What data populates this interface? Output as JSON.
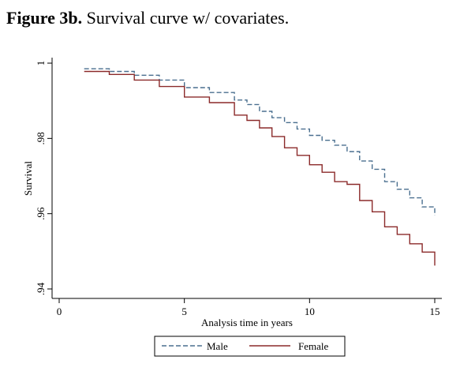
{
  "figure": {
    "label": "Figure 3b.",
    "caption": "Survival curve w/ covariates."
  },
  "chart_data": {
    "type": "line",
    "title": "",
    "xlabel": "Analysis time in years",
    "ylabel": "Survival",
    "xlim": [
      0,
      15
    ],
    "ylim": [
      0.94,
      1.0
    ],
    "xticks": [
      0,
      5,
      10,
      15
    ],
    "xtick_labels": [
      "0",
      "5",
      "10",
      "15"
    ],
    "yticks": [
      0.94,
      0.96,
      0.98,
      1.0
    ],
    "ytick_labels": [
      ".94",
      ".96",
      ".98",
      "1"
    ],
    "grid": false,
    "legend_position": "bottom",
    "series": [
      {
        "name": "Male",
        "color": "#4a6f8f",
        "style": "dashed",
        "x": [
          1.0,
          2.0,
          3.0,
          4.0,
          5.0,
          6.0,
          7.0,
          7.5,
          8.0,
          8.5,
          9.0,
          9.5,
          10.0,
          10.5,
          11.0,
          11.5,
          12.0,
          12.5,
          13.0,
          13.5,
          14.0,
          14.5,
          15.0
        ],
        "y": [
          0.9985,
          0.9978,
          0.9968,
          0.9955,
          0.9935,
          0.9922,
          0.9902,
          0.989,
          0.9872,
          0.9855,
          0.9842,
          0.9825,
          0.9808,
          0.9795,
          0.9782,
          0.9765,
          0.974,
          0.9718,
          0.9685,
          0.9665,
          0.9642,
          0.9618,
          0.9595
        ]
      },
      {
        "name": "Female",
        "color": "#8b2a2a",
        "style": "solid",
        "x": [
          1.0,
          2.0,
          3.0,
          4.0,
          5.0,
          6.0,
          7.0,
          7.5,
          8.0,
          8.5,
          9.0,
          9.5,
          10.0,
          10.5,
          11.0,
          11.5,
          12.0,
          12.5,
          13.0,
          13.5,
          14.0,
          14.5,
          15.0
        ],
        "y": [
          0.9978,
          0.997,
          0.9955,
          0.9938,
          0.991,
          0.9895,
          0.9862,
          0.9848,
          0.9828,
          0.9805,
          0.9775,
          0.9755,
          0.973,
          0.971,
          0.9685,
          0.9678,
          0.9635,
          0.9605,
          0.9565,
          0.9545,
          0.952,
          0.9498,
          0.9462
        ]
      }
    ]
  }
}
